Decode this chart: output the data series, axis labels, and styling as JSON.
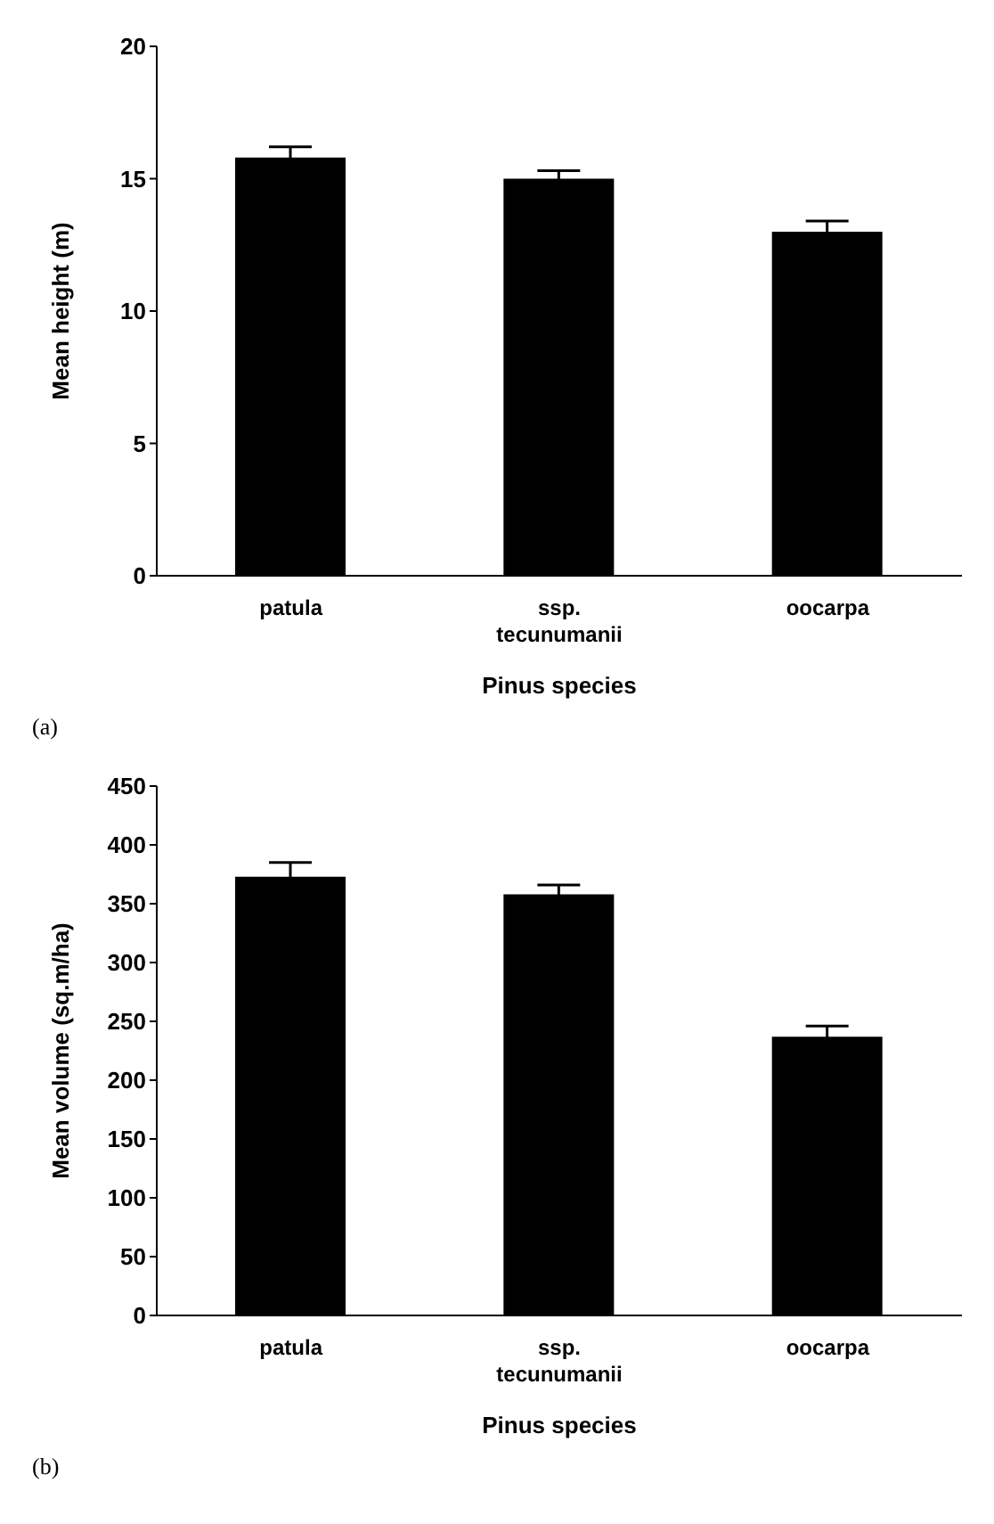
{
  "chart_data": [
    {
      "type": "bar",
      "categories": [
        "patula",
        "ssp. tecunumanii",
        "oocarpa"
      ],
      "values": [
        15.8,
        15.0,
        13.0
      ],
      "errors": [
        0.4,
        0.3,
        0.4
      ],
      "color": "#000000",
      "ylim": [
        0,
        20
      ],
      "yticks": [
        0,
        5,
        10,
        15,
        20
      ],
      "xlabel": "Pinus species",
      "ylabel": "Mean height (m)",
      "annotations": [
        "(a)"
      ],
      "grid": false,
      "legend": false
    },
    {
      "type": "bar",
      "categories": [
        "patula",
        "ssp. tecunumanii",
        "oocarpa"
      ],
      "values": [
        373,
        358,
        237
      ],
      "errors": [
        12,
        8,
        9
      ],
      "color": "#000000",
      "ylim": [
        0,
        450
      ],
      "yticks": [
        0,
        50,
        100,
        150,
        200,
        250,
        300,
        350,
        400,
        450
      ],
      "xlabel": "Pinus species",
      "ylabel": "Mean volume (sq.m/ha)",
      "annotations": [
        "(b)"
      ],
      "grid": false,
      "legend": false
    }
  ]
}
